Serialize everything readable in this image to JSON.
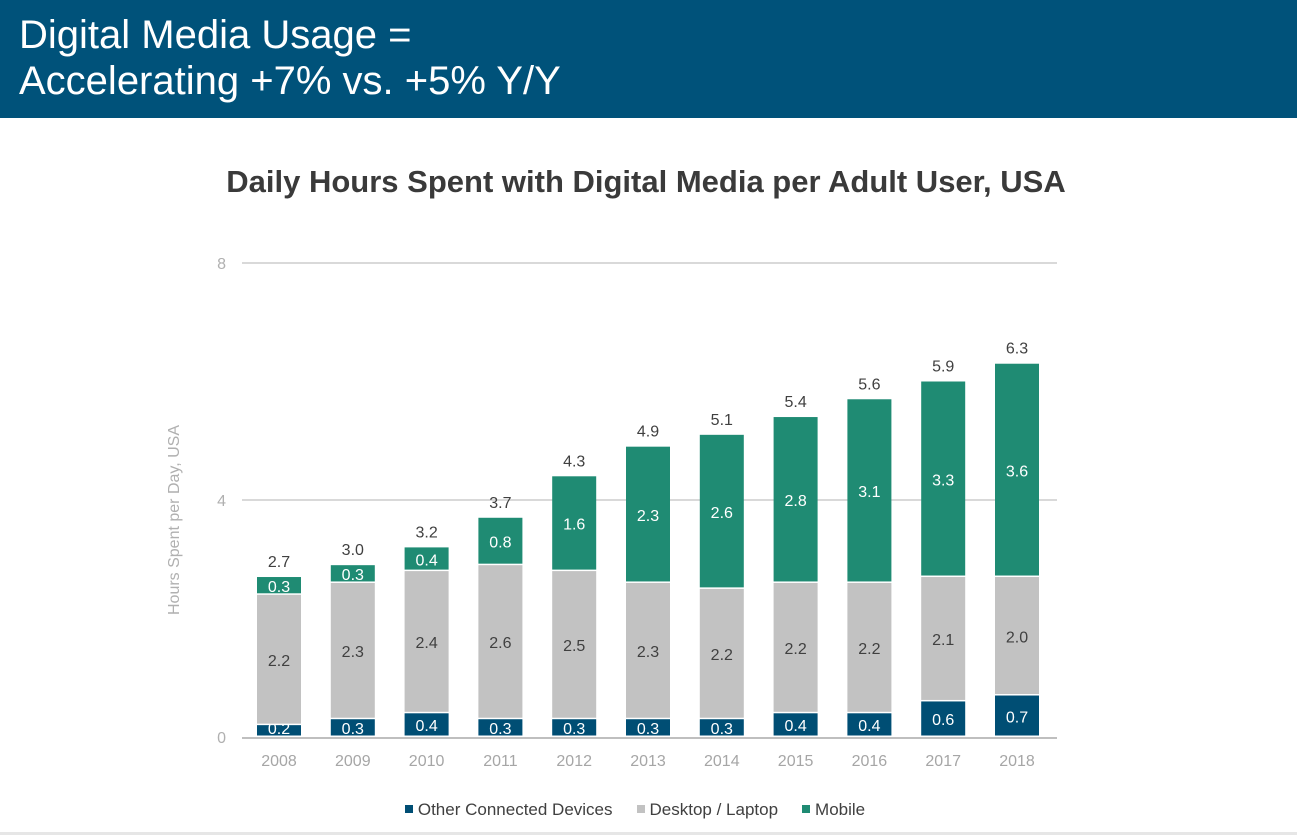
{
  "header": {
    "line1": "Digital Media Usage =",
    "line2": "Accelerating +7% vs. +5% Y/Y"
  },
  "colors": {
    "header_bg": "#00527a",
    "other": "#004e74",
    "desktop": "#c2c2c2",
    "mobile": "#1f8b73",
    "grid": "#d9d9d9"
  },
  "chart_data": {
    "type": "bar",
    "stacked": true,
    "title": "Daily Hours Spent with Digital Media per Adult User, USA",
    "xlabel": "",
    "ylabel": "Hours Spent per Day, USA",
    "ylim": [
      0,
      8
    ],
    "yticks": [
      0,
      4,
      8
    ],
    "grid": true,
    "legend_position": "bottom",
    "categories": [
      "2008",
      "2009",
      "2010",
      "2011",
      "2012",
      "2013",
      "2014",
      "2015",
      "2016",
      "2017",
      "2018"
    ],
    "series": [
      {
        "name": "Other Connected Devices",
        "color": "#004e74",
        "values": [
          0.2,
          0.3,
          0.4,
          0.3,
          0.3,
          0.3,
          0.3,
          0.4,
          0.4,
          0.6,
          0.7
        ]
      },
      {
        "name": "Desktop / Laptop",
        "color": "#c2c2c2",
        "values": [
          2.2,
          2.3,
          2.4,
          2.6,
          2.5,
          2.3,
          2.2,
          2.2,
          2.2,
          2.1,
          2.0
        ]
      },
      {
        "name": "Mobile",
        "color": "#1f8b73",
        "values": [
          0.3,
          0.3,
          0.4,
          0.8,
          1.6,
          2.3,
          2.6,
          2.8,
          3.1,
          3.3,
          3.6
        ]
      }
    ],
    "totals": [
      "2.7",
      "3.0",
      "3.2",
      "3.7",
      "4.3",
      "4.9",
      "5.1",
      "5.4",
      "5.6",
      "5.9",
      "6.3"
    ]
  }
}
